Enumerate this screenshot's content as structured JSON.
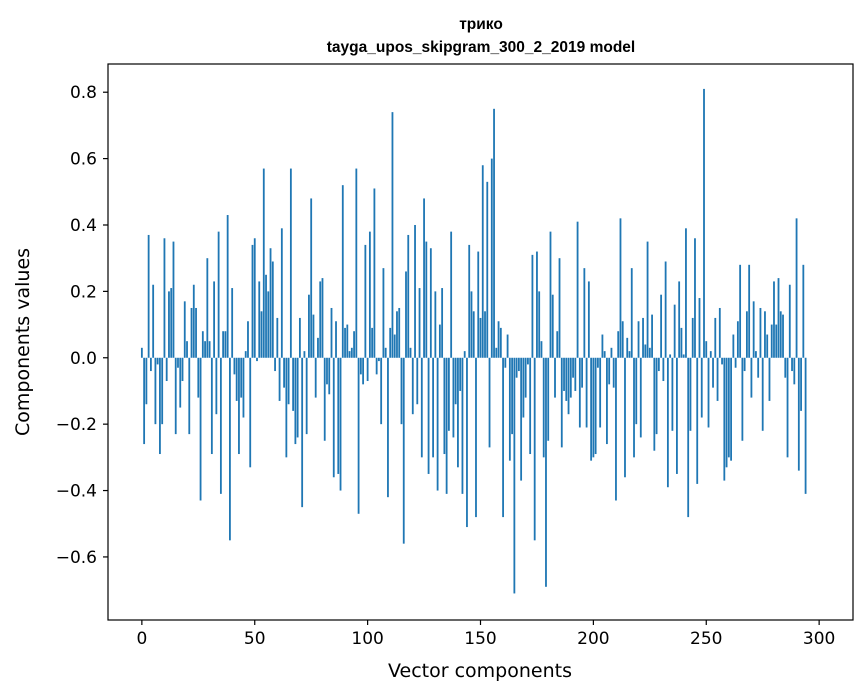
{
  "chart_data": {
    "type": "bar",
    "title_line1": "трико",
    "title_line2": "tayga_upos_skipgram_300_2_2019 model",
    "xlabel": "Vector components",
    "ylabel": "Components values",
    "xlim": [
      -15,
      315
    ],
    "ylim": [
      -0.79,
      0.885
    ],
    "xticks": [
      0,
      50,
      100,
      150,
      200,
      250,
      300
    ],
    "xtick_labels": [
      "0",
      "50",
      "100",
      "150",
      "200",
      "250",
      "300"
    ],
    "yticks": [
      -0.6,
      -0.4,
      -0.2,
      0.0,
      0.2,
      0.4,
      0.6,
      0.8
    ],
    "ytick_labels": [
      "−0.6",
      "−0.4",
      "−0.2",
      "0.0",
      "0.2",
      "0.4",
      "0.6",
      "0.8"
    ],
    "bar_color": "#1f77b4",
    "values": [
      0.03,
      -0.26,
      -0.14,
      0.37,
      -0.04,
      0.22,
      -0.2,
      -0.02,
      -0.29,
      -0.2,
      0.36,
      -0.07,
      0.2,
      0.21,
      0.35,
      -0.23,
      -0.03,
      -0.15,
      -0.07,
      0.17,
      0.05,
      -0.23,
      0.15,
      0.22,
      0.15,
      -0.12,
      -0.43,
      0.08,
      0.05,
      0.3,
      0.05,
      -0.29,
      0.23,
      -0.17,
      0.38,
      -0.41,
      0.08,
      0.08,
      0.43,
      -0.55,
      0.21,
      -0.05,
      -0.13,
      -0.29,
      -0.12,
      -0.18,
      0.02,
      0.11,
      -0.33,
      0.34,
      0.36,
      -0.01,
      0.23,
      0.14,
      0.57,
      0.25,
      0.2,
      0.33,
      0.29,
      -0.04,
      0.12,
      -0.13,
      0.39,
      -0.09,
      -0.3,
      -0.14,
      0.57,
      -0.16,
      -0.26,
      -0.24,
      0.12,
      -0.45,
      0.02,
      -0.23,
      0.19,
      0.48,
      0.13,
      -0.12,
      0.06,
      0.23,
      0.24,
      -0.25,
      -0.08,
      -0.11,
      0.15,
      -0.36,
      0.11,
      -0.35,
      -0.4,
      0.52,
      0.09,
      0.1,
      0.02,
      0.03,
      0.08,
      0.57,
      -0.47,
      -0.05,
      -0.08,
      0.34,
      -0.07,
      0.38,
      0.09,
      0.51,
      -0.05,
      -0.01,
      -0.2,
      0.27,
      0.03,
      -0.42,
      0.09,
      0.74,
      0.07,
      0.14,
      0.15,
      -0.2,
      -0.56,
      0.26,
      0.37,
      0.03,
      -0.17,
      0.4,
      -0.14,
      0.21,
      -0.3,
      0.48,
      0.35,
      -0.35,
      0.33,
      -0.3,
      0.2,
      -0.4,
      0.1,
      0.21,
      -0.29,
      -0.41,
      -0.22,
      0.38,
      -0.24,
      -0.14,
      -0.33,
      -0.1,
      -0.41,
      0.02,
      -0.51,
      0.34,
      0.2,
      0.14,
      -0.48,
      0.32,
      0.12,
      0.58,
      0.14,
      0.53,
      -0.27,
      0.6,
      0.75,
      0.03,
      0.11,
      0.09,
      -0.48,
      -0.03,
      0.07,
      -0.31,
      -0.23,
      -0.71,
      -0.06,
      -0.04,
      -0.37,
      -0.18,
      -0.12,
      -0.02,
      -0.29,
      0.31,
      -0.55,
      0.32,
      0.2,
      0.05,
      -0.3,
      -0.69,
      -0.25,
      0.38,
      0.19,
      -0.12,
      0.08,
      0.3,
      -0.27,
      -0.1,
      -0.13,
      -0.17,
      -0.12,
      -0.06,
      -0.1,
      0.41,
      -0.21,
      -0.09,
      0.27,
      -0.21,
      0.23,
      -0.31,
      -0.3,
      -0.29,
      -0.03,
      -0.21,
      0.07,
      0.02,
      -0.26,
      -0.08,
      0.03,
      -0.09,
      -0.43,
      0.08,
      0.42,
      0.11,
      -0.36,
      0.06,
      0.02,
      0.27,
      -0.3,
      -0.2,
      0.11,
      -0.24,
      0.12,
      0.04,
      0.35,
      0.03,
      0.13,
      -0.28,
      -0.23,
      -0.04,
      0.19,
      -0.07,
      0.29,
      -0.39,
      0.01,
      -0.22,
      0.16,
      -0.35,
      0.23,
      0.09,
      0.01,
      0.39,
      -0.48,
      -0.22,
      0.12,
      0.36,
      -0.38,
      0.18,
      -0.18,
      0.81,
      0.05,
      -0.21,
      0.02,
      -0.09,
      0.12,
      -0.13,
      0.15,
      -0.02,
      -0.37,
      -0.33,
      -0.3,
      -0.31,
      0.07,
      -0.03,
      0.11,
      0.28,
      -0.25,
      -0.04,
      0.14,
      0.28,
      -0.12,
      0.17,
      0.02,
      -0.06,
      0.15,
      -0.22,
      0.14,
      0.07,
      -0.13,
      0.1,
      0.23,
      0.1,
      0.24,
      0.14,
      0.13,
      -0.06,
      -0.3,
      0.22,
      -0.04,
      -0.08,
      0.42,
      -0.34,
      -0.16,
      0.28,
      -0.41
    ]
  }
}
